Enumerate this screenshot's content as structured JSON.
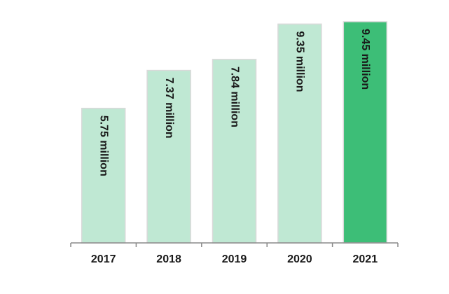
{
  "chart_data": {
    "type": "bar",
    "categories": [
      "2017",
      "2018",
      "2019",
      "2020",
      "2021"
    ],
    "values": [
      5.75,
      7.37,
      7.84,
      9.35,
      9.45
    ],
    "data_labels": [
      "5.75 million",
      "7.37 million",
      "7.84 million",
      "9.35 million",
      "9.45 million"
    ],
    "title": "",
    "xlabel": "",
    "ylabel": "",
    "ylim": [
      0,
      9.45
    ],
    "grid": false,
    "legend": "none",
    "colors": {
      "bar_fill": "#bfe8d3",
      "bar_stroke": "#d9d9d9",
      "highlight_fill": "#3dbe77",
      "axis": "#8a8a8a"
    },
    "highlight_index": 4
  }
}
